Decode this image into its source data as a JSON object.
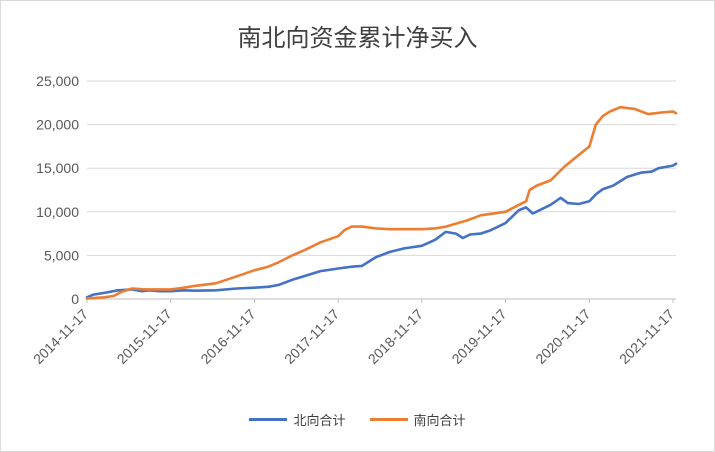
{
  "chart_data": {
    "type": "line",
    "title": "南北向资金累计净买入",
    "xlabel": "",
    "ylabel": "",
    "ylim": [
      0,
      25000
    ],
    "yticks": [
      0,
      5000,
      10000,
      15000,
      20000,
      25000
    ],
    "ytick_labels": [
      "0",
      "5,000",
      "10,000",
      "15,000",
      "20,000",
      "25,000"
    ],
    "xlim": [
      "2014-11-17",
      "2021-11-30"
    ],
    "xticks": [
      "2014-11-17",
      "2015-11-17",
      "2016-11-17",
      "2017-11-17",
      "2018-11-17",
      "2019-11-17",
      "2020-11-17",
      "2021-11-17"
    ],
    "grid": true,
    "legend_position": "bottom",
    "series": [
      {
        "name": "北向合计",
        "color": "#4472c4",
        "points": [
          [
            "2014-11-17",
            200
          ],
          [
            "2014-12-15",
            500
          ],
          [
            "2015-02-01",
            700
          ],
          [
            "2015-04-01",
            1000
          ],
          [
            "2015-06-01",
            1100
          ],
          [
            "2015-07-15",
            900
          ],
          [
            "2015-08-15",
            1000
          ],
          [
            "2015-10-01",
            900
          ],
          [
            "2015-11-17",
            900
          ],
          [
            "2016-01-15",
            1000
          ],
          [
            "2016-03-01",
            950
          ],
          [
            "2016-06-01",
            1000
          ],
          [
            "2016-09-01",
            1200
          ],
          [
            "2016-11-17",
            1300
          ],
          [
            "2017-01-15",
            1400
          ],
          [
            "2017-03-01",
            1600
          ],
          [
            "2017-05-01",
            2200
          ],
          [
            "2017-07-01",
            2700
          ],
          [
            "2017-09-01",
            3200
          ],
          [
            "2017-11-17",
            3500
          ],
          [
            "2018-01-15",
            3700
          ],
          [
            "2018-03-01",
            3800
          ],
          [
            "2018-05-01",
            4800
          ],
          [
            "2018-07-01",
            5400
          ],
          [
            "2018-09-01",
            5800
          ],
          [
            "2018-11-17",
            6100
          ],
          [
            "2019-01-15",
            6800
          ],
          [
            "2019-03-01",
            7700
          ],
          [
            "2019-04-15",
            7500
          ],
          [
            "2019-05-15",
            7000
          ],
          [
            "2019-06-15",
            7400
          ],
          [
            "2019-08-01",
            7500
          ],
          [
            "2019-09-15",
            7900
          ],
          [
            "2019-11-17",
            8700
          ],
          [
            "2020-01-15",
            10200
          ],
          [
            "2020-02-15",
            10500
          ],
          [
            "2020-03-15",
            9800
          ],
          [
            "2020-04-15",
            10200
          ],
          [
            "2020-06-01",
            10800
          ],
          [
            "2020-07-15",
            11600
          ],
          [
            "2020-08-15",
            11000
          ],
          [
            "2020-10-01",
            10900
          ],
          [
            "2020-11-17",
            11200
          ],
          [
            "2020-12-15",
            12000
          ],
          [
            "2021-01-15",
            12600
          ],
          [
            "2021-03-01",
            13000
          ],
          [
            "2021-05-01",
            14000
          ],
          [
            "2021-07-01",
            14500
          ],
          [
            "2021-08-15",
            14600
          ],
          [
            "2021-09-15",
            15000
          ],
          [
            "2021-11-17",
            15300
          ],
          [
            "2021-11-30",
            15500
          ]
        ]
      },
      {
        "name": "南向合计",
        "color": "#ed7d31",
        "points": [
          [
            "2014-11-17",
            50
          ],
          [
            "2014-12-15",
            100
          ],
          [
            "2015-02-01",
            200
          ],
          [
            "2015-03-15",
            350
          ],
          [
            "2015-04-15",
            800
          ],
          [
            "2015-06-01",
            1200
          ],
          [
            "2015-08-01",
            1100
          ],
          [
            "2015-11-17",
            1100
          ],
          [
            "2016-01-15",
            1300
          ],
          [
            "2016-03-01",
            1500
          ],
          [
            "2016-06-01",
            1800
          ],
          [
            "2016-09-01",
            2600
          ],
          [
            "2016-11-17",
            3300
          ],
          [
            "2017-01-15",
            3700
          ],
          [
            "2017-03-01",
            4200
          ],
          [
            "2017-05-01",
            5000
          ],
          [
            "2017-07-01",
            5700
          ],
          [
            "2017-09-01",
            6500
          ],
          [
            "2017-11-17",
            7200
          ],
          [
            "2017-12-15",
            7900
          ],
          [
            "2018-01-15",
            8300
          ],
          [
            "2018-03-01",
            8300
          ],
          [
            "2018-05-01",
            8100
          ],
          [
            "2018-07-01",
            8000
          ],
          [
            "2018-09-01",
            8000
          ],
          [
            "2018-11-17",
            8000
          ],
          [
            "2019-01-15",
            8100
          ],
          [
            "2019-03-01",
            8300
          ],
          [
            "2019-06-01",
            9000
          ],
          [
            "2019-08-01",
            9600
          ],
          [
            "2019-11-17",
            10000
          ],
          [
            "2020-01-15",
            10800
          ],
          [
            "2020-02-15",
            11200
          ],
          [
            "2020-03-01",
            12500
          ],
          [
            "2020-04-01",
            13000
          ],
          [
            "2020-06-01",
            13600
          ],
          [
            "2020-08-01",
            15200
          ],
          [
            "2020-10-01",
            16500
          ],
          [
            "2020-11-17",
            17500
          ],
          [
            "2020-12-15",
            20000
          ],
          [
            "2021-01-15",
            21000
          ],
          [
            "2021-02-15",
            21500
          ],
          [
            "2021-04-01",
            22000
          ],
          [
            "2021-06-01",
            21800
          ],
          [
            "2021-08-01",
            21200
          ],
          [
            "2021-10-01",
            21400
          ],
          [
            "2021-11-17",
            21500
          ],
          [
            "2021-11-30",
            21300
          ]
        ]
      }
    ]
  }
}
